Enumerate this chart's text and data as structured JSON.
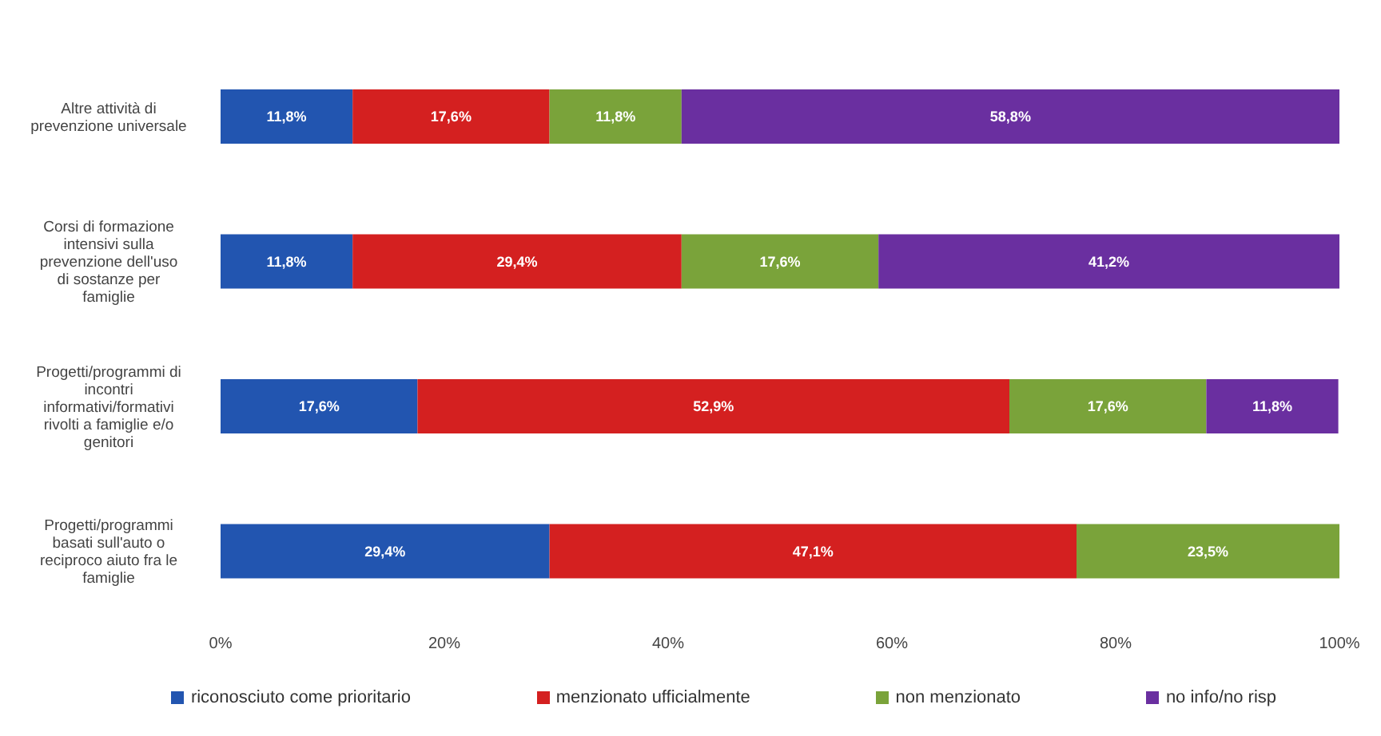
{
  "chart_data": {
    "type": "bar",
    "orientation": "horizontal",
    "stacked": true,
    "categories": [
      "Altre attività di prevenzione universale",
      "Corsi di formazione intensivi sulla prevenzione dell'uso di sostanze per famiglie",
      "Progetti/programmi di incontri informativi/formativi rivolti a famiglie e/o genitori",
      "Progetti/programmi basati sull'auto o reciproco aiuto fra le famiglie"
    ],
    "series": [
      {
        "name": "riconosciuto come prioritario",
        "color": "#2255b0",
        "values": [
          11.8,
          11.8,
          17.6,
          29.4
        ],
        "value_labels": [
          "11,8%",
          "11,8%",
          "17,6%",
          "29,4%"
        ]
      },
      {
        "name": "menzionato ufficialmente",
        "color": "#d42020",
        "values": [
          17.6,
          29.4,
          52.9,
          47.1
        ],
        "value_labels": [
          "17,6%",
          "29,4%",
          "52,9%",
          "47,1%"
        ]
      },
      {
        "name": "non menzionato",
        "color": "#7aa33a",
        "values": [
          11.8,
          17.6,
          17.6,
          23.5
        ],
        "value_labels": [
          "11,8%",
          "17,6%",
          "17,6%",
          "23,5%"
        ]
      },
      {
        "name": "no info/no risp",
        "color": "#6a2fa0",
        "values": [
          58.8,
          41.2,
          11.8,
          null
        ],
        "value_labels": [
          "58,8%",
          "41,2%",
          "11,8%",
          null
        ]
      }
    ],
    "xlim": [
      0,
      100
    ],
    "xticks": [
      {
        "value": 0,
        "label": "0%"
      },
      {
        "value": 20,
        "label": "20%"
      },
      {
        "value": 40,
        "label": "40%"
      },
      {
        "value": 60,
        "label": "60%"
      },
      {
        "value": 80,
        "label": "80%"
      },
      {
        "value": 100,
        "label": "100%"
      }
    ],
    "grid": false,
    "legend": "bottom"
  }
}
